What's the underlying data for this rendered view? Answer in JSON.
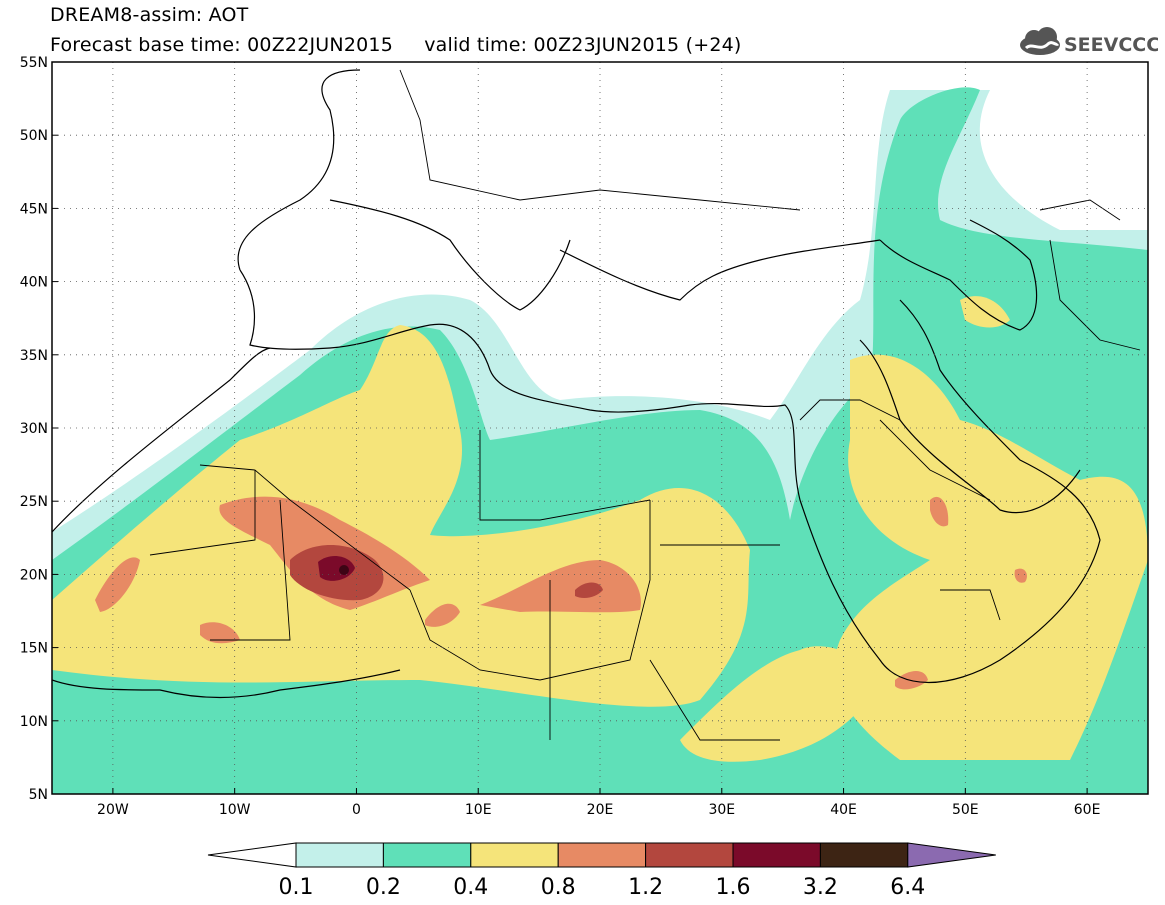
{
  "header": {
    "title": "DREAM8-assim: AOT",
    "base_time_label": "Forecast base time: 00Z22JUN2015",
    "valid_time_label": "valid time: 00Z23JUN2015 (+24)",
    "logo_text": "SEEVCCC"
  },
  "map": {
    "lon_range": [
      -25,
      65
    ],
    "lat_range": [
      5,
      55
    ],
    "lat_ticks": [
      "55N",
      "50N",
      "45N",
      "40N",
      "35N",
      "30N",
      "25N",
      "20N",
      "15N",
      "10N",
      "5N"
    ],
    "lon_ticks": [
      "20W",
      "10W",
      "0",
      "10E",
      "20E",
      "30E",
      "40E",
      "50E",
      "60E"
    ],
    "grid": "dotted",
    "field": "aerosol optical thickness"
  },
  "legend": {
    "levels": [
      "0.1",
      "0.2",
      "0.4",
      "0.8",
      "1.2",
      "1.6",
      "3.2",
      "6.4"
    ],
    "colors": [
      "#c3f0ea",
      "#5fe0b8",
      "#f5e47a",
      "#e78a64",
      "#b3473e",
      "#7b0a2a",
      "#3d2414",
      "#8b6ab0"
    ],
    "under_color": "#ffffff"
  }
}
